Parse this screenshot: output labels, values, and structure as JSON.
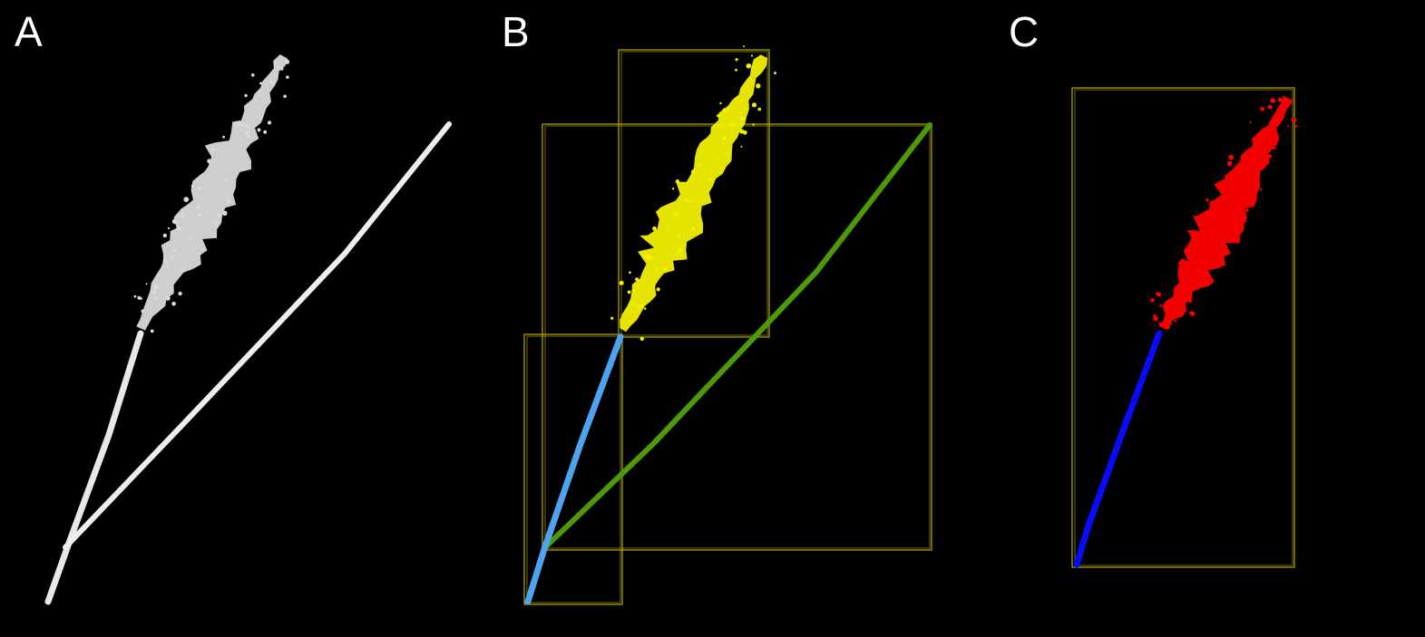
{
  "panels": [
    {
      "label": "A",
      "colors": {
        "stem": "#e8e8e8",
        "head": "#d9d9d9",
        "leaf": "#eeeeee"
      }
    },
    {
      "label": "B",
      "colors": {
        "stem": "#4da3f0",
        "head": "#f2ef00",
        "leaf": "#4e9a06",
        "box": "#b5a800"
      }
    },
    {
      "label": "C",
      "colors": {
        "stem": "#0a0aff",
        "head": "#ff0000",
        "box": "#b5a800"
      }
    }
  ]
}
